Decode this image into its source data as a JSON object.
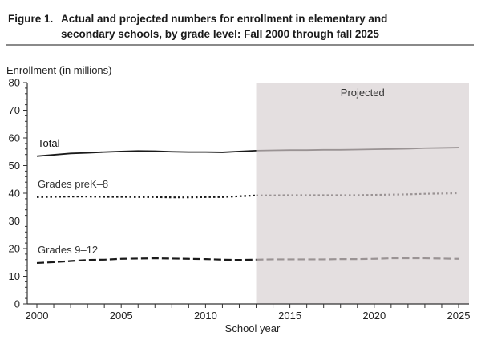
{
  "figure": {
    "label": "Figure 1.",
    "title_line1": "Actual and projected numbers for enrollment in elementary and",
    "title_line2": "secondary schools, by grade level: Fall 2000 through fall 2025"
  },
  "chart_data": {
    "type": "line",
    "ylabel": "Enrollment (in millions)",
    "xlabel": "School year",
    "ylim": [
      0,
      80
    ],
    "xlim": [
      2000,
      2025
    ],
    "y_ticks": [
      0,
      10,
      20,
      30,
      40,
      50,
      60,
      70,
      80
    ],
    "x_ticks": [
      2000,
      2005,
      2010,
      2015,
      2020,
      2025
    ],
    "grid": false,
    "projected_region": {
      "label": "Projected",
      "from": 2013,
      "to": 2025,
      "color": "#e4dfe0"
    },
    "x": [
      2000,
      2001,
      2002,
      2003,
      2004,
      2005,
      2006,
      2007,
      2008,
      2009,
      2010,
      2011,
      2012,
      2013,
      2014,
      2015,
      2016,
      2017,
      2018,
      2019,
      2020,
      2021,
      2022,
      2023,
      2024,
      2025
    ],
    "series": [
      {
        "name": "Total",
        "style": "solid",
        "values": [
          53.4,
          53.9,
          54.4,
          54.6,
          54.9,
          55.1,
          55.3,
          55.2,
          55.0,
          54.9,
          54.9,
          54.8,
          55.1,
          55.4,
          55.5,
          55.6,
          55.6,
          55.7,
          55.7,
          55.8,
          55.9,
          56.0,
          56.1,
          56.3,
          56.4,
          56.5
        ]
      },
      {
        "name": "Grades preK–8",
        "style": "dotted",
        "values": [
          38.6,
          38.7,
          38.8,
          38.8,
          38.7,
          38.7,
          38.6,
          38.6,
          38.5,
          38.5,
          38.6,
          38.6,
          38.9,
          39.2,
          39.2,
          39.3,
          39.3,
          39.3,
          39.3,
          39.3,
          39.4,
          39.5,
          39.6,
          39.8,
          39.9,
          40.0
        ]
      },
      {
        "name": "Grades 9–12",
        "style": "dashed",
        "values": [
          14.8,
          15.1,
          15.5,
          15.9,
          16.0,
          16.3,
          16.4,
          16.5,
          16.4,
          16.3,
          16.2,
          16.0,
          15.9,
          16.0,
          16.1,
          16.1,
          16.1,
          16.1,
          16.2,
          16.2,
          16.3,
          16.5,
          16.5,
          16.5,
          16.4,
          16.3
        ]
      }
    ],
    "colors": {
      "actual": "#1a1a1a",
      "projected": "#9a9394"
    }
  }
}
